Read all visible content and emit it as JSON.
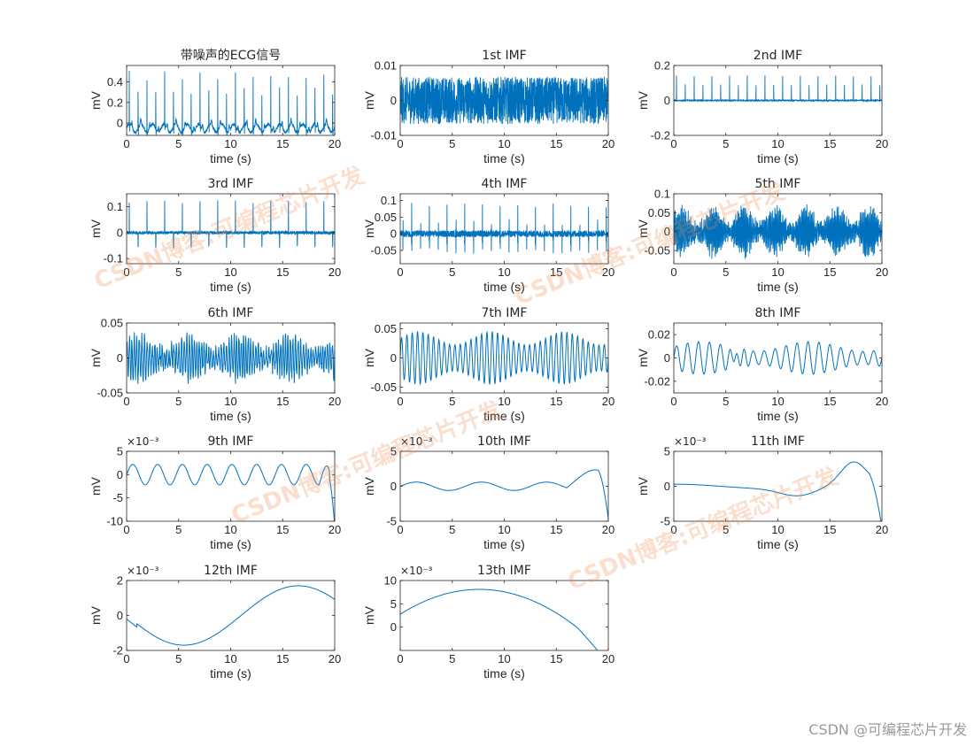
{
  "watermark": {
    "corner": "CSDN @可编程芯片开发",
    "diagonal": "CSDN博客:可编程芯片开发"
  },
  "colors": {
    "line": "#0072BD",
    "axis": "#262626",
    "text": "#262626"
  },
  "chart_data": [
    {
      "type": "line",
      "title": "带噪声的ECG信号",
      "xlabel": "time (s)",
      "ylabel": "mV",
      "xlim": [
        0,
        20
      ],
      "ylim": [
        -0.12,
        0.56
      ],
      "yticks": [
        0,
        0.2,
        0.4
      ],
      "ytick_labels": [
        "0",
        "0.2",
        "0.4"
      ],
      "xticks": [
        0,
        5,
        10,
        15,
        20
      ],
      "exponent": "",
      "x": [
        0,
        20
      ],
      "values": [
        0,
        0
      ],
      "legend": "none",
      "grid": false
    },
    {
      "type": "line",
      "title": "1st IMF",
      "xlabel": "time (s)",
      "ylabel": "mV",
      "xlim": [
        0,
        20
      ],
      "ylim": [
        -0.01,
        0.01
      ],
      "yticks": [
        -0.01,
        0,
        0.01
      ],
      "ytick_labels": [
        "-0.01",
        "0",
        "0.01"
      ],
      "xticks": [
        0,
        5,
        10,
        15,
        20
      ],
      "exponent": "",
      "x": [
        0,
        20
      ],
      "values": [
        0,
        0
      ],
      "legend": "none",
      "grid": false
    },
    {
      "type": "line",
      "title": "2nd IMF",
      "xlabel": "time (s)",
      "ylabel": "mV",
      "xlim": [
        0,
        20
      ],
      "ylim": [
        -0.2,
        0.2
      ],
      "yticks": [
        -0.2,
        0,
        0.2
      ],
      "ytick_labels": [
        "-0.2",
        "0",
        "0.2"
      ],
      "xticks": [
        0,
        5,
        10,
        15,
        20
      ],
      "exponent": "",
      "x": [
        0,
        20
      ],
      "values": [
        0,
        0
      ],
      "legend": "none",
      "grid": false
    },
    {
      "type": "line",
      "title": "3rd IMF",
      "xlabel": "time (s)",
      "ylabel": "mV",
      "xlim": [
        0,
        20
      ],
      "ylim": [
        -0.12,
        0.15
      ],
      "yticks": [
        -0.1,
        0,
        0.1
      ],
      "ytick_labels": [
        "-0.1",
        "0",
        "0.1"
      ],
      "xticks": [
        0,
        5,
        10,
        15,
        20
      ],
      "exponent": "",
      "x": [
        0,
        20
      ],
      "values": [
        0,
        0
      ],
      "legend": "none",
      "grid": false
    },
    {
      "type": "line",
      "title": "4th IMF",
      "xlabel": "time (s)",
      "ylabel": "mV",
      "xlim": [
        0,
        20
      ],
      "ylim": [
        -0.09,
        0.12
      ],
      "yticks": [
        -0.05,
        0,
        0.05,
        0.1
      ],
      "ytick_labels": [
        "-0.05",
        "0",
        "0.05",
        "0.1"
      ],
      "xticks": [
        0,
        5,
        10,
        15,
        20
      ],
      "exponent": "",
      "x": [
        0,
        20
      ],
      "values": [
        0,
        0
      ],
      "legend": "none",
      "grid": false
    },
    {
      "type": "line",
      "title": "5th IMF",
      "xlabel": "time (s)",
      "ylabel": "mV",
      "xlim": [
        0,
        20
      ],
      "ylim": [
        -0.085,
        0.1
      ],
      "yticks": [
        -0.05,
        0,
        0.05,
        0.1
      ],
      "ytick_labels": [
        "-0.05",
        "0",
        "0.05",
        "0.1"
      ],
      "xticks": [
        0,
        5,
        10,
        15,
        20
      ],
      "exponent": "",
      "x": [
        0,
        20
      ],
      "values": [
        0,
        0
      ],
      "legend": "none",
      "grid": false
    },
    {
      "type": "line",
      "title": "6th IMF",
      "xlabel": "time (s)",
      "ylabel": "mV",
      "xlim": [
        0,
        20
      ],
      "ylim": [
        -0.05,
        0.05
      ],
      "yticks": [
        -0.05,
        0,
        0.05
      ],
      "ytick_labels": [
        "-0.05",
        "0",
        "0.05"
      ],
      "xticks": [
        0,
        5,
        10,
        15,
        20
      ],
      "exponent": "",
      "x": [
        0,
        20
      ],
      "values": [
        0,
        0
      ],
      "legend": "none",
      "grid": false
    },
    {
      "type": "line",
      "title": "7th IMF",
      "xlabel": "time (s)",
      "ylabel": "mV",
      "xlim": [
        0,
        20
      ],
      "ylim": [
        -0.06,
        0.06
      ],
      "yticks": [
        -0.05,
        0,
        0.05
      ],
      "ytick_labels": [
        "-0.05",
        "0",
        "0.05"
      ],
      "xticks": [
        0,
        5,
        10,
        15,
        20
      ],
      "exponent": "",
      "x": [
        0,
        20
      ],
      "values": [
        0,
        0
      ],
      "legend": "none",
      "grid": false
    },
    {
      "type": "line",
      "title": "8th IMF",
      "xlabel": "time (s)",
      "ylabel": "mV",
      "xlim": [
        0,
        20
      ],
      "ylim": [
        -0.03,
        0.03
      ],
      "yticks": [
        -0.02,
        0,
        0.02
      ],
      "ytick_labels": [
        "-0.02",
        "0",
        "0.02"
      ],
      "xticks": [
        0,
        5,
        10,
        15,
        20
      ],
      "exponent": "",
      "x": [
        0,
        20
      ],
      "values": [
        0,
        0
      ],
      "legend": "none",
      "grid": false
    },
    {
      "type": "line",
      "title": "9th IMF",
      "xlabel": "time (s)",
      "ylabel": "mV",
      "xlim": [
        0,
        20
      ],
      "ylim": [
        -10,
        5
      ],
      "yticks": [
        -10,
        -5,
        0,
        5
      ],
      "ytick_labels": [
        "-10",
        "-5",
        "0",
        "5"
      ],
      "xticks": [
        0,
        5,
        10,
        15,
        20
      ],
      "exponent": "×10⁻³",
      "x": [
        0,
        20
      ],
      "values": [
        0,
        0
      ],
      "legend": "none",
      "grid": false
    },
    {
      "type": "line",
      "title": "10th IMF",
      "xlabel": "time (s)",
      "ylabel": "mV",
      "xlim": [
        0,
        20
      ],
      "ylim": [
        -5,
        5
      ],
      "yticks": [
        -5,
        0,
        5
      ],
      "ytick_labels": [
        "-5",
        "0",
        "5"
      ],
      "xticks": [
        0,
        5,
        10,
        15,
        20
      ],
      "exponent": "×10⁻³",
      "x": [
        0,
        20
      ],
      "values": [
        0,
        0
      ],
      "legend": "none",
      "grid": false
    },
    {
      "type": "line",
      "title": "11th IMF",
      "xlabel": "time (s)",
      "ylabel": "mV",
      "xlim": [
        0,
        20
      ],
      "ylim": [
        -5,
        5
      ],
      "yticks": [
        -5,
        0,
        5
      ],
      "ytick_labels": [
        "-5",
        "0",
        "5"
      ],
      "xticks": [
        0,
        5,
        10,
        15,
        20
      ],
      "exponent": "×10⁻³",
      "x": [
        0,
        20
      ],
      "values": [
        0,
        0
      ],
      "legend": "none",
      "grid": false
    },
    {
      "type": "line",
      "title": "12th IMF",
      "xlabel": "time (s)",
      "ylabel": "mV",
      "xlim": [
        0,
        20
      ],
      "ylim": [
        -2,
        2
      ],
      "yticks": [
        -2,
        0,
        2
      ],
      "ytick_labels": [
        "-2",
        "0",
        "2"
      ],
      "xticks": [
        0,
        5,
        10,
        15,
        20
      ],
      "exponent": "×10⁻³",
      "x": [
        0,
        20
      ],
      "values": [
        0,
        0
      ],
      "legend": "none",
      "grid": false
    },
    {
      "type": "line",
      "title": "13th IMF",
      "xlabel": "time (s)",
      "ylabel": "mV",
      "xlim": [
        0,
        20
      ],
      "ylim": [
        -5,
        10
      ],
      "yticks": [
        0,
        5,
        10
      ],
      "ytick_labels": [
        "0",
        "5",
        "10"
      ],
      "xticks": [
        0,
        5,
        10,
        15,
        20
      ],
      "exponent": "×10⁻³",
      "x": [
        0,
        20
      ],
      "values": [
        0,
        0
      ],
      "legend": "none",
      "grid": false
    }
  ]
}
